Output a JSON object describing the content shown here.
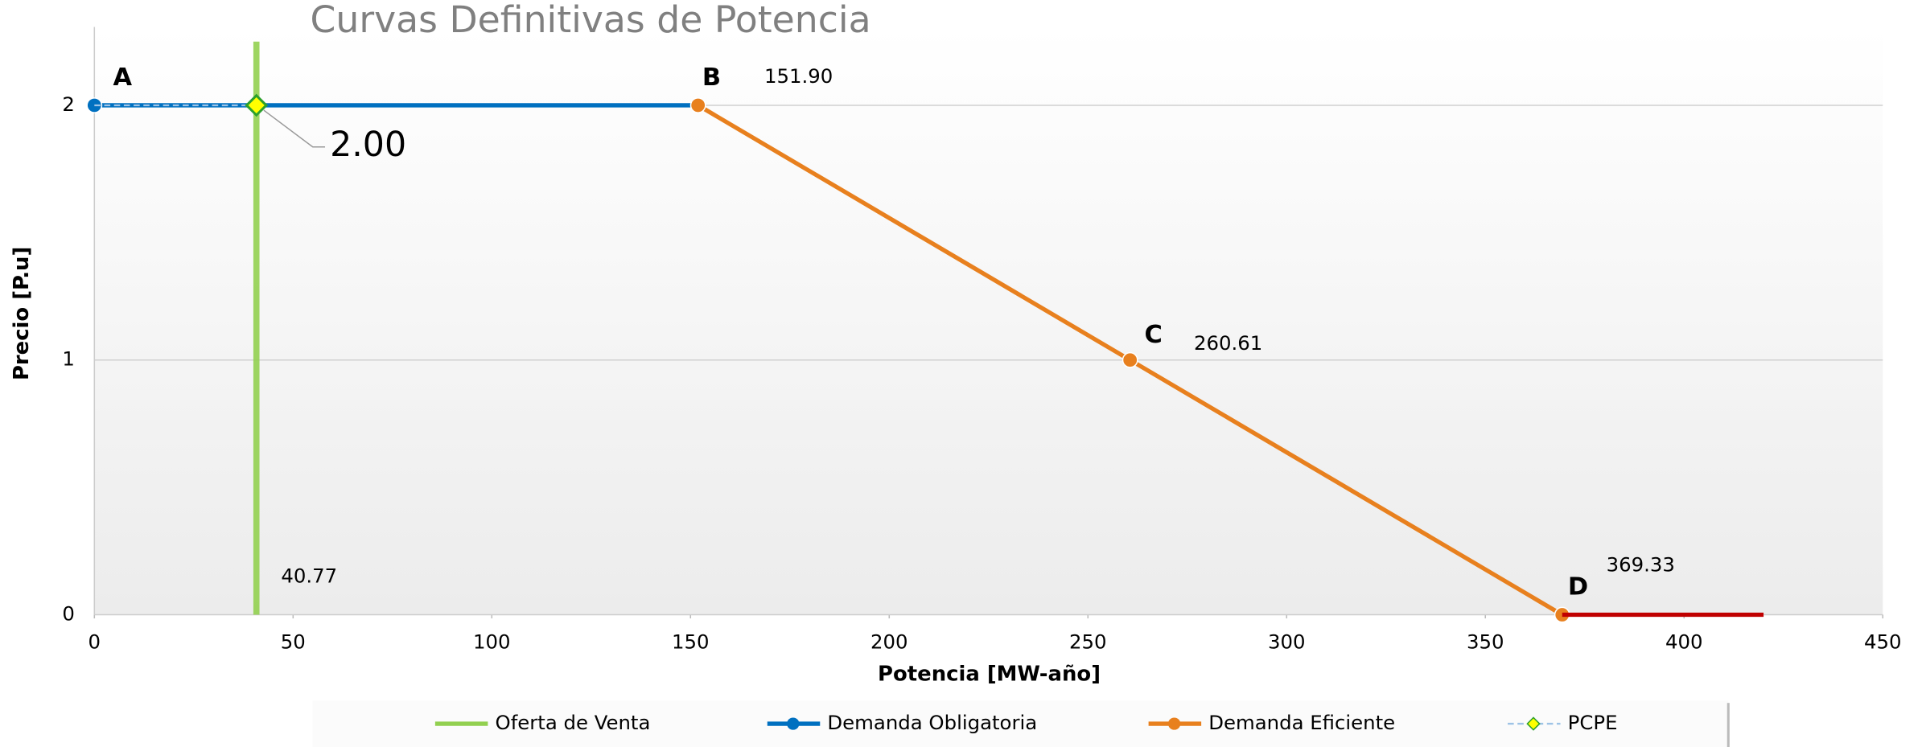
{
  "chart_data": {
    "type": "line",
    "title": "Curvas Definitivas de Potencia",
    "xlabel": "Potencia  [MW-año]",
    "ylabel": "Precio  [P.u]",
    "xlim": [
      0,
      450
    ],
    "ylim": [
      0,
      2.3
    ],
    "xticks": [
      0,
      50,
      100,
      150,
      200,
      250,
      300,
      350,
      400,
      450
    ],
    "yticks": [
      0,
      1,
      2
    ],
    "grid": true,
    "legend": "bottom",
    "series": [
      {
        "name": "Oferta de Venta",
        "color": "#92d050",
        "x": [
          40.77,
          40.77
        ],
        "values": [
          0,
          2.25
        ],
        "value_labels": [
          "40.77",
          null
        ]
      },
      {
        "name": "Demanda Obligatoria",
        "color": "#0070c0",
        "x": [
          0,
          151.9
        ],
        "values": [
          2,
          2
        ],
        "labels": [
          "A",
          null
        ]
      },
      {
        "name": "Demanda Eficiente",
        "color": "#e8801e",
        "x": [
          151.9,
          260.61,
          369.33
        ],
        "values": [
          2,
          1,
          0
        ],
        "labels": [
          "B",
          "C",
          "D"
        ],
        "value_labels": [
          "151.90",
          "260.61",
          "369.33"
        ]
      },
      {
        "color": "#c00000",
        "x": [
          369.33,
          420
        ],
        "values": [
          0,
          0
        ]
      },
      {
        "name": "PCPE",
        "color": "#9dc3e6",
        "x": [
          0,
          40.77
        ],
        "values": [
          2,
          2
        ],
        "value_labels": [
          null,
          "2.00"
        ]
      }
    ]
  }
}
